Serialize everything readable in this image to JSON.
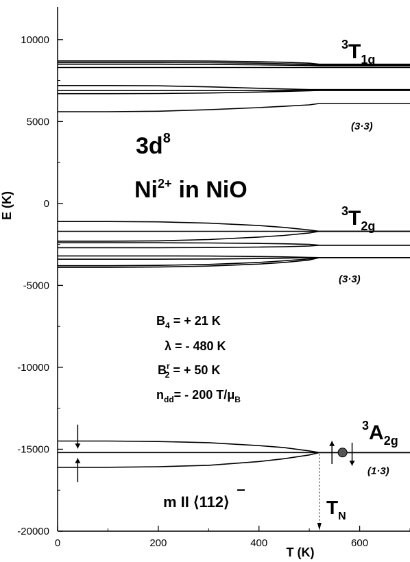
{
  "chart_data": {
    "type": "line",
    "xlabel": "T (K)",
    "ylabel": "E (K)",
    "xlim": [
      0,
      700
    ],
    "ylim": [
      -20000,
      12000
    ],
    "xticks": [
      0,
      200,
      400,
      600
    ],
    "yticks": [
      10000,
      5000,
      0,
      -5000,
      -10000,
      -15000,
      -20000
    ],
    "x": [
      0,
      100,
      200,
      300,
      400,
      450,
      500,
      520,
      700
    ],
    "series": [
      {
        "group": "T1g",
        "values": [
          8700,
          8700,
          8700,
          8690,
          8650,
          8620,
          8560,
          8500,
          8500
        ]
      },
      {
        "group": "T1g",
        "values": [
          8600,
          8600,
          8600,
          8590,
          8560,
          8530,
          8490,
          8450,
          8450
        ]
      },
      {
        "group": "T1g",
        "values": [
          8500,
          8500,
          8500,
          8490,
          8460,
          8440,
          8420,
          8400,
          8400
        ]
      },
      {
        "group": "T1g",
        "values": [
          8300,
          8300,
          8300,
          8300,
          8300,
          8300,
          8300,
          8300,
          8300
        ]
      },
      {
        "group": "T1g",
        "values": [
          7200,
          7200,
          7180,
          7120,
          7030,
          6990,
          6950,
          6950,
          6950
        ]
      },
      {
        "group": "T1g",
        "values": [
          6900,
          6900,
          6900,
          6900,
          6900,
          6900,
          6900,
          6900,
          6900
        ]
      },
      {
        "group": "T1g",
        "values": [
          6700,
          6700,
          6710,
          6740,
          6800,
          6840,
          6880,
          6900,
          6900
        ]
      },
      {
        "group": "T1g",
        "values": [
          5600,
          5600,
          5630,
          5720,
          5850,
          5930,
          6020,
          6100,
          6100
        ]
      },
      {
        "group": "T2g",
        "values": [
          -1100,
          -1100,
          -1120,
          -1200,
          -1350,
          -1460,
          -1620,
          -1700,
          -1700
        ]
      },
      {
        "group": "T2g",
        "values": [
          -1700,
          -1700,
          -1700,
          -1700,
          -1700,
          -1700,
          -1700,
          -1700,
          -1700
        ]
      },
      {
        "group": "T2g",
        "values": [
          -2300,
          -2300,
          -2280,
          -2200,
          -2050,
          -1950,
          -1800,
          -1700,
          -1700
        ]
      },
      {
        "group": "T2g",
        "values": [
          -2400,
          -2400,
          -2400,
          -2410,
          -2440,
          -2460,
          -2500,
          -2550,
          -2550
        ]
      },
      {
        "group": "T2g",
        "values": [
          -2700,
          -2700,
          -2700,
          -2690,
          -2660,
          -2640,
          -2600,
          -2550,
          -2550
        ]
      },
      {
        "group": "T2g",
        "values": [
          -3200,
          -3200,
          -3200,
          -3210,
          -3240,
          -3260,
          -3290,
          -3300,
          -3300
        ]
      },
      {
        "group": "T2g",
        "values": [
          -3400,
          -3400,
          -3400,
          -3390,
          -3360,
          -3340,
          -3310,
          -3300,
          -3300
        ]
      },
      {
        "group": "T2g",
        "values": [
          -3800,
          -3800,
          -3780,
          -3720,
          -3600,
          -3500,
          -3380,
          -3300,
          -3300
        ]
      },
      {
        "group": "T2g",
        "values": [
          -3900,
          -3900,
          -3880,
          -3820,
          -3700,
          -3600,
          -3450,
          -3300,
          -3300
        ]
      },
      {
        "group": "A2g",
        "values": [
          -14500,
          -14500,
          -14530,
          -14600,
          -14780,
          -14900,
          -15100,
          -15200,
          -15200
        ]
      },
      {
        "group": "A2g",
        "values": [
          -15200,
          -15200,
          -15200,
          -15200,
          -15200,
          -15200,
          -15200,
          -15200,
          -15200
        ]
      },
      {
        "group": "A2g",
        "values": [
          -16100,
          -16100,
          -16070,
          -15980,
          -15750,
          -15580,
          -15350,
          -15200,
          -15200
        ]
      }
    ],
    "annotations": {
      "config_main": "3d",
      "config_sup": "8",
      "ion_main": "Ni",
      "ion_sup": "2+",
      "ion_rest": "in  NiO",
      "t1g_pre": "3",
      "t1g_main": "T",
      "t1g_sub": "1g",
      "t1g_deg": "(3·3)",
      "t2g_pre": "3",
      "t2g_main": "T",
      "t2g_sub": "2g",
      "t2g_deg": "(3·3)",
      "a2g_pre": "3",
      "a2g_main": "A",
      "a2g_sub": "2g",
      "a2g_deg": "(1·3)",
      "b4_main": "B",
      "b4_sub": "4",
      "b4_rest": " = + 21 K",
      "lambda": "λ = - 480 K",
      "b2_main": "B",
      "b2_sub": "2",
      "b2_sup": "r",
      "b2_rest": " = + 50 K",
      "ndd_main": "n",
      "ndd_sub": "dd",
      "ndd_rest": "= - 200 T/μ",
      "ndd_sub2": "B",
      "moment_dir": "m II",
      "moment_vec": "⟨11",
      "moment_bar": "2",
      "moment_close": "⟩",
      "tn_main": "T",
      "tn_sub": "N"
    },
    "grid": false
  }
}
